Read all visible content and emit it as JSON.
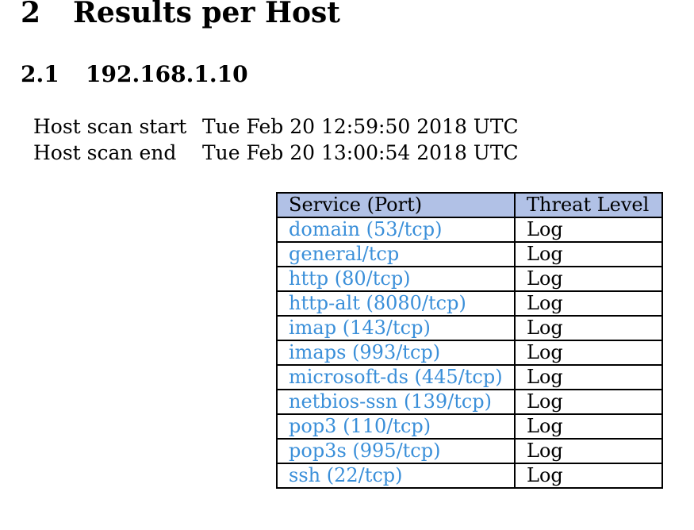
{
  "section": {
    "number": "2",
    "title": "Results per Host"
  },
  "subsection": {
    "number": "2.1",
    "title": "192.168.1.10"
  },
  "scan_info": [
    {
      "label": "Host scan start",
      "value": "Tue Feb 20 12:59:50 2018 UTC"
    },
    {
      "label": "Host scan end",
      "value": "Tue Feb 20 13:00:54 2018 UTC"
    }
  ],
  "table": {
    "header_color": "#b1c1e6",
    "link_color": "#3a8fd9",
    "headers": [
      "Service (Port)",
      "Threat Level"
    ],
    "rows": [
      {
        "service": "domain (53/tcp)",
        "threat": "Log"
      },
      {
        "service": "general/tcp",
        "threat": "Log"
      },
      {
        "service": "http (80/tcp)",
        "threat": "Log"
      },
      {
        "service": "http-alt (8080/tcp)",
        "threat": "Log"
      },
      {
        "service": "imap (143/tcp)",
        "threat": "Log"
      },
      {
        "service": "imaps (993/tcp)",
        "threat": "Log"
      },
      {
        "service": "microsoft-ds (445/tcp)",
        "threat": "Log"
      },
      {
        "service": "netbios-ssn (139/tcp)",
        "threat": "Log"
      },
      {
        "service": "pop3 (110/tcp)",
        "threat": "Log"
      },
      {
        "service": "pop3s (995/tcp)",
        "threat": "Log"
      },
      {
        "service": "ssh (22/tcp)",
        "threat": "Log"
      }
    ]
  }
}
